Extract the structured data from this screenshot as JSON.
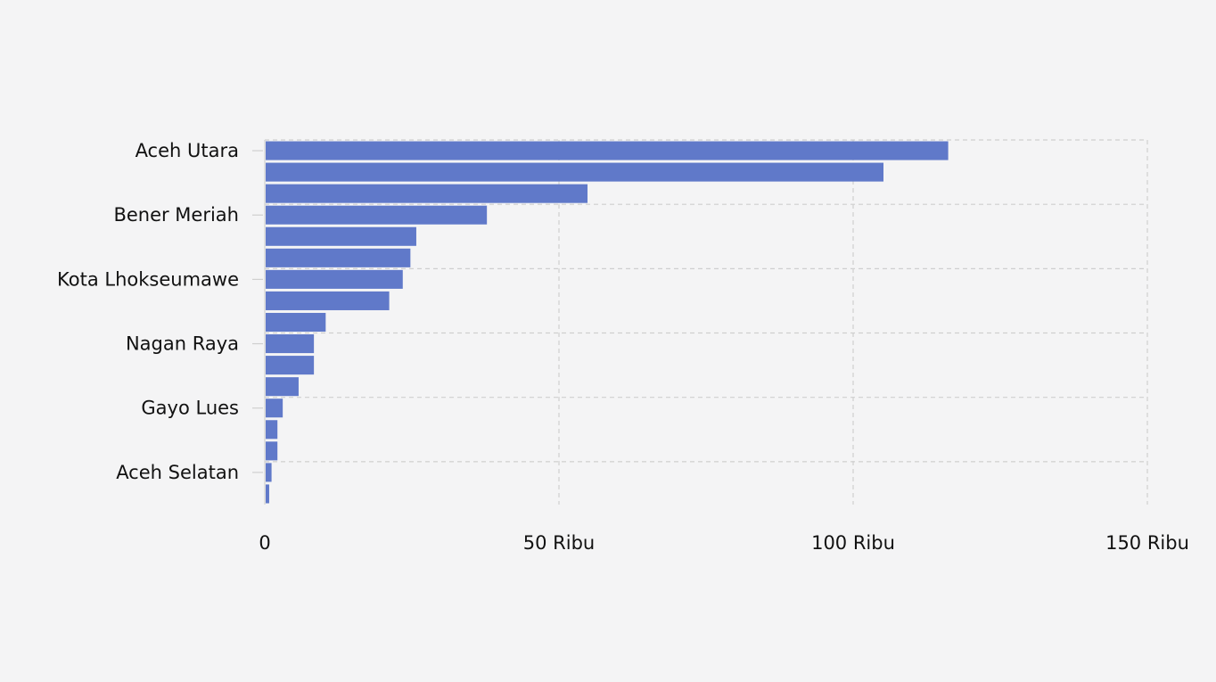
{
  "chart_data": {
    "type": "bar",
    "orientation": "horizontal",
    "title": "",
    "xlabel": "",
    "ylabel": "",
    "xlim": [
      0,
      150000
    ],
    "x_ticks": [
      {
        "value": 0,
        "label": "0"
      },
      {
        "value": 50000,
        "label": "50 Ribu"
      },
      {
        "value": 100000,
        "label": "100 Ribu"
      },
      {
        "value": 150000,
        "label": "150 Ribu"
      }
    ],
    "y_tick_labels": [
      {
        "index": 0,
        "label": "Aceh Utara"
      },
      {
        "index": 3,
        "label": "Bener Meriah"
      },
      {
        "index": 6,
        "label": "Kota Lhokseumawe"
      },
      {
        "index": 9,
        "label": "Nagan Raya"
      },
      {
        "index": 12,
        "label": "Gayo Lues"
      },
      {
        "index": 15,
        "label": "Aceh Selatan"
      }
    ],
    "values": [
      116000,
      105000,
      54700,
      37600,
      25600,
      24600,
      23300,
      21000,
      10200,
      8200,
      8200,
      5600,
      2900,
      2000,
      2000,
      1000,
      600
    ],
    "bar_color": "#6079c9",
    "grid": true
  }
}
